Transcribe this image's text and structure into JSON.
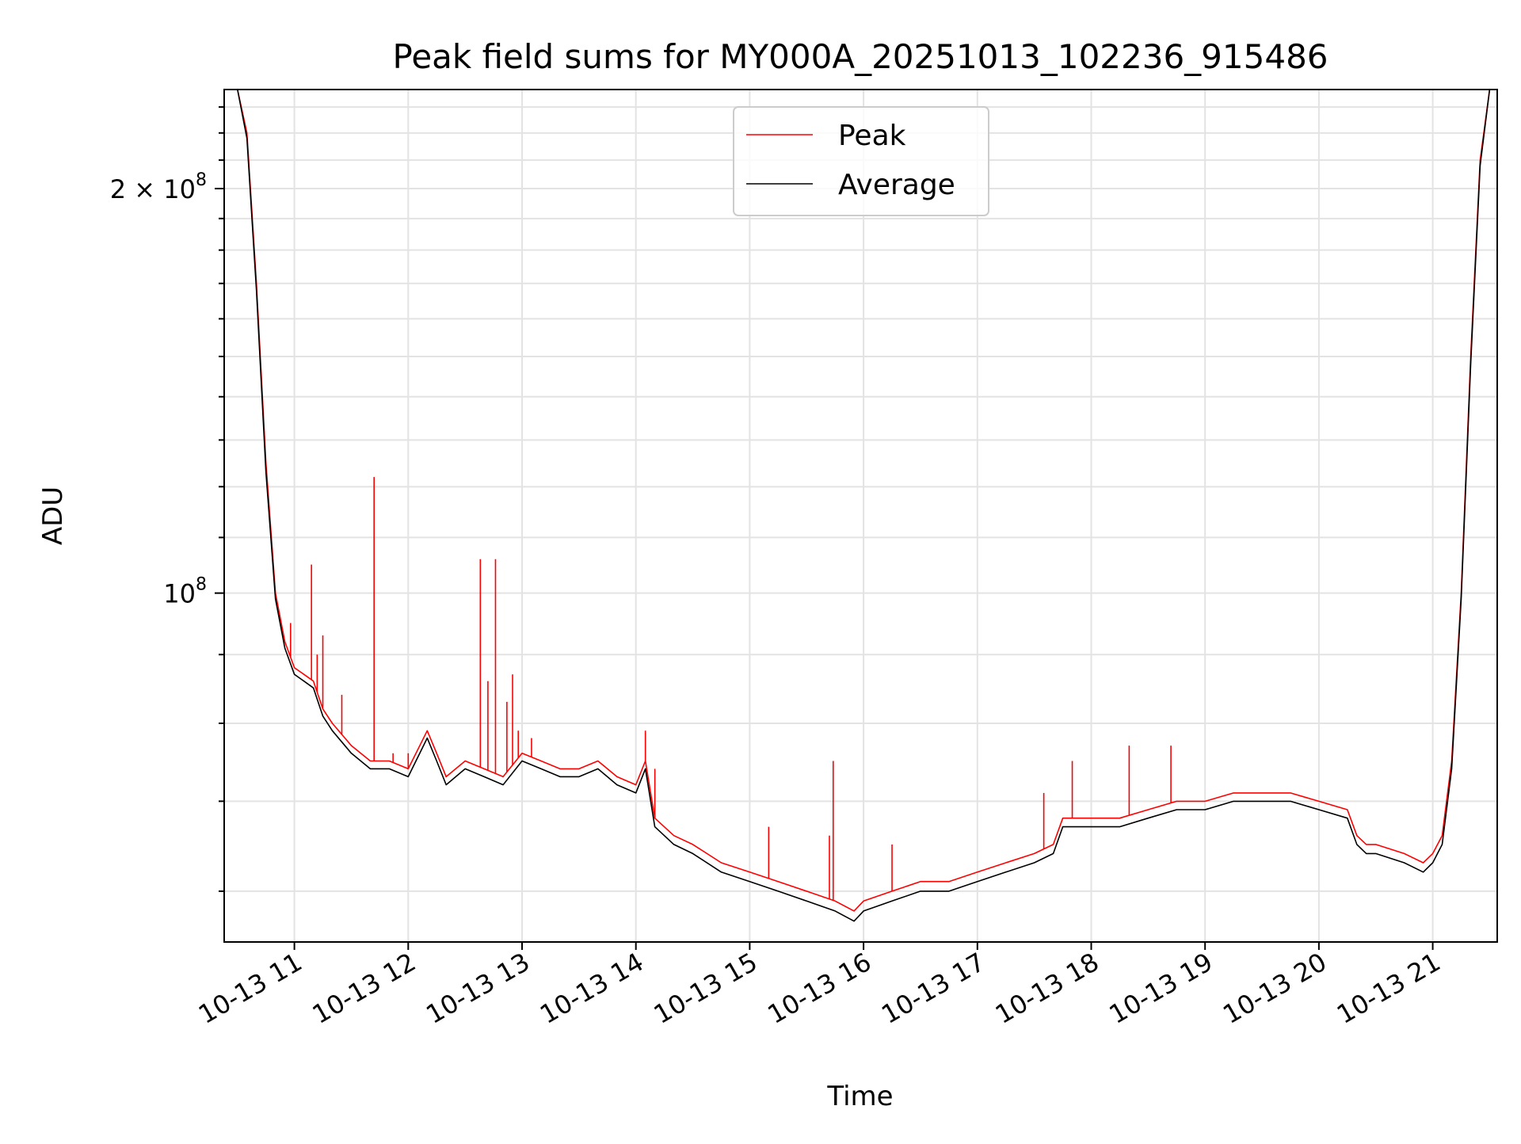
{
  "chart_data": {
    "type": "line",
    "title": "Peak field sums for MY000A_20251013_102236_915486",
    "xlabel": "Time",
    "ylabel": "ADU",
    "y_scale": "log",
    "grid": true,
    "legend_position": "upper-center",
    "x_range": [
      "2025-10-13 10:23",
      "2025-10-13 21:34"
    ],
    "ylim": [
      55000000,
      237000000
    ],
    "x_tick_labels": [
      "10-13 11",
      "10-13 12",
      "10-13 13",
      "10-13 14",
      "10-13 15",
      "10-13 16",
      "10-13 17",
      "10-13 18",
      "10-13 19",
      "10-13 20",
      "10-13 21"
    ],
    "y_tick_labels": [
      {
        "value": 200000000,
        "mantissa": "2 × 10",
        "exponent": "8"
      },
      {
        "value": 100000000,
        "mantissa": "10",
        "exponent": "8"
      }
    ],
    "series": [
      {
        "name": "Peak",
        "color": "#ff0000",
        "x": [
          "10:23",
          "10:30",
          "10:35",
          "10:40",
          "10:45",
          "10:50",
          "10:55",
          "11:00",
          "11:05",
          "11:10",
          "11:15",
          "11:20",
          "11:30",
          "11:40",
          "11:50",
          "12:00",
          "12:10",
          "12:15",
          "12:20",
          "12:30",
          "12:40",
          "12:50",
          "13:00",
          "13:10",
          "13:20",
          "13:30",
          "13:40",
          "13:50",
          "14:00",
          "14:05",
          "14:10",
          "14:20",
          "14:30",
          "14:45",
          "15:00",
          "15:15",
          "15:30",
          "15:45",
          "15:55",
          "16:00",
          "16:15",
          "16:30",
          "16:45",
          "17:00",
          "17:15",
          "17:30",
          "17:40",
          "17:45",
          "18:00",
          "18:15",
          "18:30",
          "18:45",
          "19:00",
          "19:15",
          "19:30",
          "19:45",
          "20:00",
          "20:15",
          "20:20",
          "20:25",
          "20:30",
          "20:45",
          "20:55",
          "21:00",
          "21:05",
          "21:10",
          "21:15",
          "21:20",
          "21:25",
          "21:30",
          "21:34"
        ],
        "values": [
          237000000,
          237000000,
          220000000,
          170000000,
          125000000,
          100000000,
          92000000,
          88000000,
          87000000,
          86000000,
          82000000,
          80000000,
          77000000,
          75000000,
          75000000,
          74000000,
          79000000,
          76000000,
          73000000,
          75000000,
          74000000,
          73000000,
          76000000,
          75000000,
          74000000,
          74000000,
          75000000,
          73000000,
          72000000,
          75000000,
          68000000,
          66000000,
          65000000,
          63000000,
          62000000,
          61000000,
          60000000,
          59000000,
          58000000,
          59000000,
          60000000,
          61000000,
          61000000,
          62000000,
          63000000,
          64000000,
          65000000,
          68000000,
          68000000,
          68000000,
          69000000,
          70000000,
          70000000,
          71000000,
          71000000,
          71000000,
          70000000,
          69000000,
          66000000,
          65000000,
          65000000,
          64000000,
          63000000,
          64000000,
          66000000,
          75000000,
          100000000,
          150000000,
          210000000,
          237000000,
          237000000
        ]
      },
      {
        "name": "Average",
        "color": "#000000",
        "x": [
          "10:23",
          "10:30",
          "10:35",
          "10:40",
          "10:45",
          "10:50",
          "10:55",
          "11:00",
          "11:05",
          "11:10",
          "11:15",
          "11:20",
          "11:30",
          "11:40",
          "11:50",
          "12:00",
          "12:10",
          "12:15",
          "12:20",
          "12:30",
          "12:40",
          "12:50",
          "13:00",
          "13:10",
          "13:20",
          "13:30",
          "13:40",
          "13:50",
          "14:00",
          "14:05",
          "14:10",
          "14:20",
          "14:30",
          "14:45",
          "15:00",
          "15:15",
          "15:30",
          "15:45",
          "15:55",
          "16:00",
          "16:15",
          "16:30",
          "16:45",
          "17:00",
          "17:15",
          "17:30",
          "17:40",
          "17:45",
          "18:00",
          "18:15",
          "18:30",
          "18:45",
          "19:00",
          "19:15",
          "19:30",
          "19:45",
          "20:00",
          "20:15",
          "20:20",
          "20:25",
          "20:30",
          "20:45",
          "20:55",
          "21:00",
          "21:05",
          "21:10",
          "21:15",
          "21:20",
          "21:25",
          "21:30",
          "21:34"
        ],
        "values": [
          237000000,
          237000000,
          218000000,
          168000000,
          123000000,
          99000000,
          91000000,
          87000000,
          86000000,
          85000000,
          81000000,
          79000000,
          76000000,
          74000000,
          74000000,
          73000000,
          78000000,
          75000000,
          72000000,
          74000000,
          73000000,
          72000000,
          75000000,
          74000000,
          73000000,
          73000000,
          74000000,
          72000000,
          71000000,
          74000000,
          67000000,
          65000000,
          64000000,
          62000000,
          61000000,
          60000000,
          59000000,
          58000000,
          57000000,
          58000000,
          59000000,
          60000000,
          60000000,
          61000000,
          62000000,
          63000000,
          64000000,
          67000000,
          67000000,
          67000000,
          68000000,
          69000000,
          69000000,
          70000000,
          70000000,
          70000000,
          69000000,
          68000000,
          65000000,
          64000000,
          64000000,
          63000000,
          62000000,
          63000000,
          65000000,
          74000000,
          99000000,
          148000000,
          208000000,
          237000000,
          237000000
        ]
      }
    ],
    "spikes": {
      "series": "Peak",
      "x": [
        "10:58",
        "11:09",
        "11:12",
        "11:15",
        "11:25",
        "11:42",
        "11:52",
        "12:00",
        "12:38",
        "12:42",
        "12:46",
        "12:52",
        "12:55",
        "12:58",
        "13:05",
        "14:05",
        "14:10",
        "15:10",
        "15:42",
        "15:44",
        "16:15",
        "17:35",
        "17:50",
        "18:20",
        "18:42"
      ],
      "values": [
        95000000,
        105000000,
        90000000,
        93000000,
        84000000,
        122000000,
        76000000,
        76000000,
        106000000,
        86000000,
        106000000,
        83000000,
        87000000,
        79000000,
        78000000,
        79000000,
        74000000,
        67000000,
        66000000,
        75000000,
        65000000,
        71000000,
        75000000,
        77000000,
        77000000
      ]
    }
  }
}
